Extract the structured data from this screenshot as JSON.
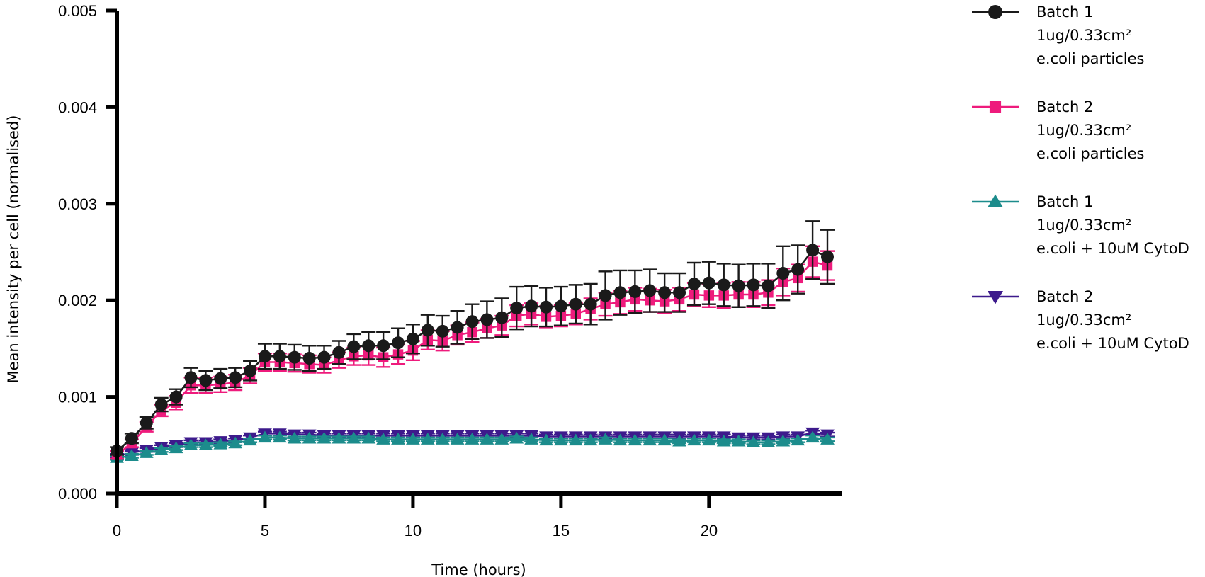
{
  "chart_data": {
    "type": "line",
    "xlabel": "Time (hours)",
    "ylabel": "Mean intensity per cell (normalised)",
    "xlim": [
      0,
      24
    ],
    "ylim": [
      0,
      0.005
    ],
    "xticks": [
      0,
      5,
      10,
      15,
      20
    ],
    "yticks": [
      0.0,
      0.001,
      0.002,
      0.003,
      0.004,
      0.005
    ],
    "ytick_labels": [
      "0.000",
      "0.001",
      "0.002",
      "0.003",
      "0.004",
      "0.005"
    ],
    "grid": false,
    "legend_position": "right",
    "series": [
      {
        "name": "Batch 1",
        "legend_lines": [
          "Batch 1",
          "1ug/0.33cm²",
          "e.coli particles"
        ],
        "color": "#1a1a1a",
        "marker": "circle",
        "x": [
          0,
          0.5,
          1,
          1.5,
          2,
          2.5,
          3,
          3.5,
          4,
          4.5,
          5,
          5.5,
          6,
          6.5,
          7,
          7.5,
          8,
          8.5,
          9,
          9.5,
          10,
          10.5,
          11,
          11.5,
          12,
          12.5,
          13,
          13.5,
          14,
          14.5,
          15,
          15.5,
          16,
          16.5,
          17,
          17.5,
          18,
          18.5,
          19,
          19.5,
          20,
          20.5,
          21,
          21.5,
          22,
          22.5,
          23,
          23.5,
          24
        ],
        "y": [
          0.00044,
          0.00057,
          0.00073,
          0.00092,
          0.001,
          0.0012,
          0.00117,
          0.00119,
          0.0012,
          0.00127,
          0.00142,
          0.00142,
          0.00141,
          0.0014,
          0.00141,
          0.00146,
          0.00152,
          0.00153,
          0.00153,
          0.00156,
          0.0016,
          0.00169,
          0.00168,
          0.00172,
          0.00178,
          0.0018,
          0.00182,
          0.00192,
          0.00194,
          0.00193,
          0.00194,
          0.00196,
          0.00196,
          0.00205,
          0.00208,
          0.00209,
          0.0021,
          0.00208,
          0.00208,
          0.00217,
          0.00218,
          0.00216,
          0.00215,
          0.00216,
          0.00215,
          0.00228,
          0.00232,
          0.00252,
          0.00245
        ],
        "err": [
          4e-05,
          5e-05,
          6e-05,
          7e-05,
          8e-05,
          0.0001,
          0.0001,
          0.0001,
          0.0001,
          0.0001,
          0.00013,
          0.00013,
          0.00013,
          0.00013,
          0.00012,
          0.00012,
          0.00013,
          0.00014,
          0.00014,
          0.00015,
          0.00015,
          0.00016,
          0.00016,
          0.00017,
          0.00018,
          0.00019,
          0.0002,
          0.00022,
          0.00021,
          0.0002,
          0.0002,
          0.0002,
          0.00021,
          0.00025,
          0.00023,
          0.00022,
          0.00022,
          0.0002,
          0.0002,
          0.00022,
          0.00022,
          0.00022,
          0.00022,
          0.00022,
          0.00023,
          0.00028,
          0.00025,
          0.0003,
          0.00028
        ]
      },
      {
        "name": "Batch 2",
        "legend_lines": [
          "Batch 2",
          "1ug/0.33cm²",
          "e.coli particles"
        ],
        "color": "#ee1b7c",
        "marker": "square",
        "x": [
          0,
          0.5,
          1,
          1.5,
          2,
          2.5,
          3,
          3.5,
          4,
          4.5,
          5,
          5.5,
          6,
          6.5,
          7,
          7.5,
          8,
          8.5,
          9,
          9.5,
          10,
          10.5,
          11,
          11.5,
          12,
          12.5,
          13,
          13.5,
          14,
          14.5,
          15,
          15.5,
          16,
          16.5,
          17,
          17.5,
          18,
          18.5,
          19,
          19.5,
          20,
          20.5,
          21,
          21.5,
          22,
          22.5,
          23,
          23.5,
          24
        ],
        "y": [
          0.0004,
          0.00052,
          0.00069,
          0.00086,
          0.00094,
          0.00112,
          0.00112,
          0.00113,
          0.00115,
          0.00122,
          0.00136,
          0.00136,
          0.00135,
          0.00134,
          0.00133,
          0.00138,
          0.00142,
          0.00143,
          0.00141,
          0.00144,
          0.00148,
          0.00159,
          0.00158,
          0.00164,
          0.00167,
          0.00171,
          0.00174,
          0.00184,
          0.00186,
          0.00183,
          0.00184,
          0.00186,
          0.00191,
          0.00196,
          0.00198,
          0.00201,
          0.002,
          0.00199,
          0.00201,
          0.00206,
          0.00205,
          0.00205,
          0.00206,
          0.00206,
          0.00208,
          0.00219,
          0.00223,
          0.0024,
          0.00236
        ],
        "err": [
          4e-05,
          4e-05,
          5e-05,
          6e-05,
          7e-05,
          8e-05,
          8e-05,
          8e-05,
          8e-05,
          8e-05,
          9e-05,
          9e-05,
          9e-05,
          9e-05,
          8e-05,
          8e-05,
          9e-05,
          0.0001,
          0.0001,
          0.0001,
          0.0001,
          0.0001,
          0.0001,
          0.0001,
          0.0001,
          0.0001,
          0.0001,
          0.00011,
          0.00011,
          0.00011,
          0.00011,
          0.00011,
          0.00011,
          0.00012,
          0.00012,
          0.00012,
          0.00012,
          0.00012,
          0.00012,
          0.00012,
          0.00012,
          0.00013,
          0.00013,
          0.00013,
          0.00013,
          0.00014,
          0.00014,
          0.00016,
          0.00015
        ]
      },
      {
        "name": "Batch 1",
        "legend_lines": [
          "Batch 1",
          "1ug/0.33cm²",
          "e.coli + 10uM CytoD"
        ],
        "color": "#1c8c8c",
        "marker": "triangle-up",
        "x": [
          0,
          0.5,
          1,
          1.5,
          2,
          2.5,
          3,
          3.5,
          4,
          4.5,
          5,
          5.5,
          6,
          6.5,
          7,
          7.5,
          8,
          8.5,
          9,
          9.5,
          10,
          10.5,
          11,
          11.5,
          12,
          12.5,
          13,
          13.5,
          14,
          14.5,
          15,
          15.5,
          16,
          16.5,
          17,
          17.5,
          18,
          18.5,
          19,
          19.5,
          20,
          20.5,
          21,
          21.5,
          22,
          22.5,
          23,
          23.5,
          24
        ],
        "y": [
          0.00037,
          0.00039,
          0.00042,
          0.00045,
          0.00047,
          0.0005,
          0.0005,
          0.00051,
          0.00052,
          0.00055,
          0.00058,
          0.00058,
          0.00057,
          0.00057,
          0.00057,
          0.00057,
          0.00057,
          0.00057,
          0.00056,
          0.00056,
          0.00056,
          0.00056,
          0.00056,
          0.00056,
          0.00056,
          0.00056,
          0.00056,
          0.00057,
          0.00056,
          0.00055,
          0.00055,
          0.00055,
          0.00055,
          0.00056,
          0.00055,
          0.00055,
          0.00055,
          0.00055,
          0.00054,
          0.00055,
          0.00055,
          0.00054,
          0.00054,
          0.00053,
          0.00053,
          0.00054,
          0.00055,
          0.00058,
          0.00056
        ],
        "err": [
          2e-05,
          2e-05,
          2e-05,
          2e-05,
          2e-05,
          2e-05,
          2e-05,
          2e-05,
          2e-05,
          2e-05,
          2e-05,
          2e-05,
          2e-05,
          2e-05,
          2e-05,
          2e-05,
          2e-05,
          2e-05,
          2e-05,
          2e-05,
          2e-05,
          2e-05,
          2e-05,
          2e-05,
          2e-05,
          2e-05,
          2e-05,
          2e-05,
          2e-05,
          2e-05,
          2e-05,
          2e-05,
          2e-05,
          2e-05,
          2e-05,
          2e-05,
          2e-05,
          2e-05,
          2e-05,
          2e-05,
          2e-05,
          2e-05,
          2e-05,
          2e-05,
          2e-05,
          2e-05,
          2e-05,
          2e-05,
          2e-05
        ]
      },
      {
        "name": "Batch 2",
        "legend_lines": [
          "Batch 2",
          "1ug/0.33cm²",
          "e.coli + 10uM CytoD"
        ],
        "color": "#3d1a8c",
        "marker": "triangle-down",
        "x": [
          0,
          0.5,
          1,
          1.5,
          2,
          2.5,
          3,
          3.5,
          4,
          4.5,
          5,
          5.5,
          6,
          6.5,
          7,
          7.5,
          8,
          8.5,
          9,
          9.5,
          10,
          10.5,
          11,
          11.5,
          12,
          12.5,
          13,
          13.5,
          14,
          14.5,
          15,
          15.5,
          16,
          16.5,
          17,
          17.5,
          18,
          18.5,
          19,
          19.5,
          20,
          20.5,
          21,
          21.5,
          22,
          22.5,
          23,
          23.5,
          24
        ],
        "y": [
          0.00039,
          0.00042,
          0.00045,
          0.00048,
          0.0005,
          0.00053,
          0.00053,
          0.00054,
          0.00055,
          0.00058,
          0.00062,
          0.00062,
          0.00061,
          0.00061,
          0.0006,
          0.0006,
          0.0006,
          0.0006,
          0.0006,
          0.0006,
          0.0006,
          0.0006,
          0.0006,
          0.0006,
          0.0006,
          0.0006,
          0.0006,
          0.0006,
          0.0006,
          0.00059,
          0.00059,
          0.00059,
          0.00059,
          0.00059,
          0.00059,
          0.00059,
          0.00059,
          0.00059,
          0.00059,
          0.00059,
          0.00059,
          0.00059,
          0.00058,
          0.00058,
          0.00058,
          0.00059,
          0.00059,
          0.00063,
          0.00061
        ],
        "err": [
          2e-05,
          2e-05,
          2e-05,
          2e-05,
          2e-05,
          2e-05,
          2e-05,
          2e-05,
          2e-05,
          2e-05,
          2e-05,
          2e-05,
          2e-05,
          2e-05,
          2e-05,
          2e-05,
          2e-05,
          2e-05,
          2e-05,
          2e-05,
          2e-05,
          2e-05,
          2e-05,
          2e-05,
          2e-05,
          2e-05,
          2e-05,
          2e-05,
          2e-05,
          2e-05,
          2e-05,
          2e-05,
          2e-05,
          2e-05,
          2e-05,
          2e-05,
          2e-05,
          2e-05,
          2e-05,
          2e-05,
          2e-05,
          2e-05,
          2e-05,
          2e-05,
          2e-05,
          2e-05,
          2e-05,
          2e-05,
          2e-05
        ]
      }
    ]
  }
}
